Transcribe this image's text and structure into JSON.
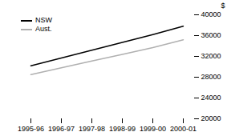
{
  "chart_data": {
    "type": "line",
    "categories": [
      "1995-96",
      "1996-97",
      "1997-98",
      "1998-99",
      "1999-00",
      "2000-01"
    ],
    "series": [
      {
        "name": "NSW",
        "color": "#000000",
        "values": [
          30200,
          31700,
          33200,
          34700,
          36200,
          37800
        ]
      },
      {
        "name": "Aust.",
        "color": "#b0b0b0",
        "values": [
          28500,
          29800,
          31100,
          32400,
          33700,
          35200
        ]
      }
    ],
    "ylabel": "$",
    "ylim": [
      20000,
      40000
    ],
    "yticks": [
      20000,
      24000,
      28000,
      32000,
      36000,
      40000
    ],
    "legend": "upper left",
    "grid": false
  }
}
